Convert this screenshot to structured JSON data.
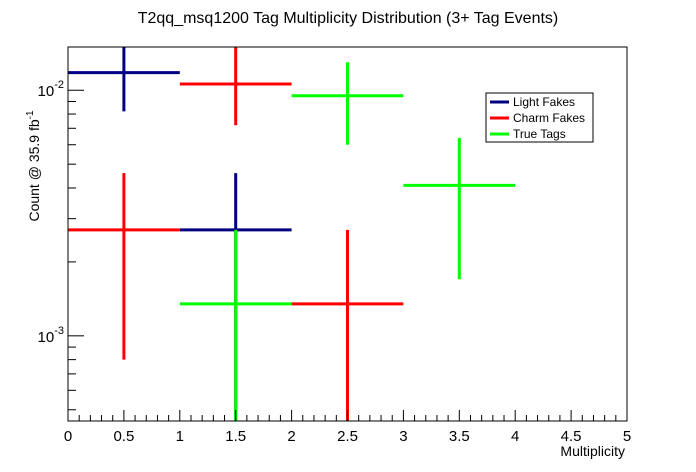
{
  "chart_data": {
    "type": "scatter",
    "title": "T2qq_msq1200 Tag Multiplicity Distribution (3+ Tag Events)",
    "xlabel": "Multiplicity",
    "ylabel_main": "Count @ 35.9 fb",
    "ylabel_sup": "-1",
    "xlim": [
      0,
      5
    ],
    "ylim": [
      0.00045,
      0.015
    ],
    "yscale": "log",
    "xticks": [
      "0",
      "0.5",
      "1",
      "1.5",
      "2",
      "2.5",
      "3",
      "3.5",
      "4",
      "4.5",
      "5"
    ],
    "yticks": [
      {
        "value": 0.01,
        "base": "10",
        "exp": "-2"
      },
      {
        "value": 0.001,
        "base": "10",
        "exp": "-3"
      }
    ],
    "legend_position": "top-right",
    "series": [
      {
        "name": "Light Fakes",
        "color": "#000080",
        "points": [
          {
            "x": 0.5,
            "xerr": 0.5,
            "y": 0.0118,
            "ylow": 0.0082,
            "yhigh": 0.016
          },
          {
            "x": 1.5,
            "xerr": 0.5,
            "y": 0.0027,
            "ylow": 0.00045,
            "yhigh": 0.0046
          }
        ]
      },
      {
        "name": "Charm Fakes",
        "color": "#ff0000",
        "points": [
          {
            "x": 0.5,
            "xerr": 0.5,
            "y": 0.0027,
            "ylow": 0.0008,
            "yhigh": 0.0046
          },
          {
            "x": 1.5,
            "xerr": 0.5,
            "y": 0.0106,
            "ylow": 0.0072,
            "yhigh": 0.016
          },
          {
            "x": 2.5,
            "xerr": 0.5,
            "y": 0.00135,
            "ylow": 0.00045,
            "yhigh": 0.0027
          }
        ]
      },
      {
        "name": "True Tags",
        "color": "#00ff00",
        "points": [
          {
            "x": 1.5,
            "xerr": 0.5,
            "y": 0.00135,
            "ylow": 0.00045,
            "yhigh": 0.0027
          },
          {
            "x": 2.5,
            "xerr": 0.5,
            "y": 0.0095,
            "ylow": 0.006,
            "yhigh": 0.013
          },
          {
            "x": 3.5,
            "xerr": 0.5,
            "y": 0.0041,
            "ylow": 0.0017,
            "yhigh": 0.0064
          }
        ]
      }
    ]
  }
}
